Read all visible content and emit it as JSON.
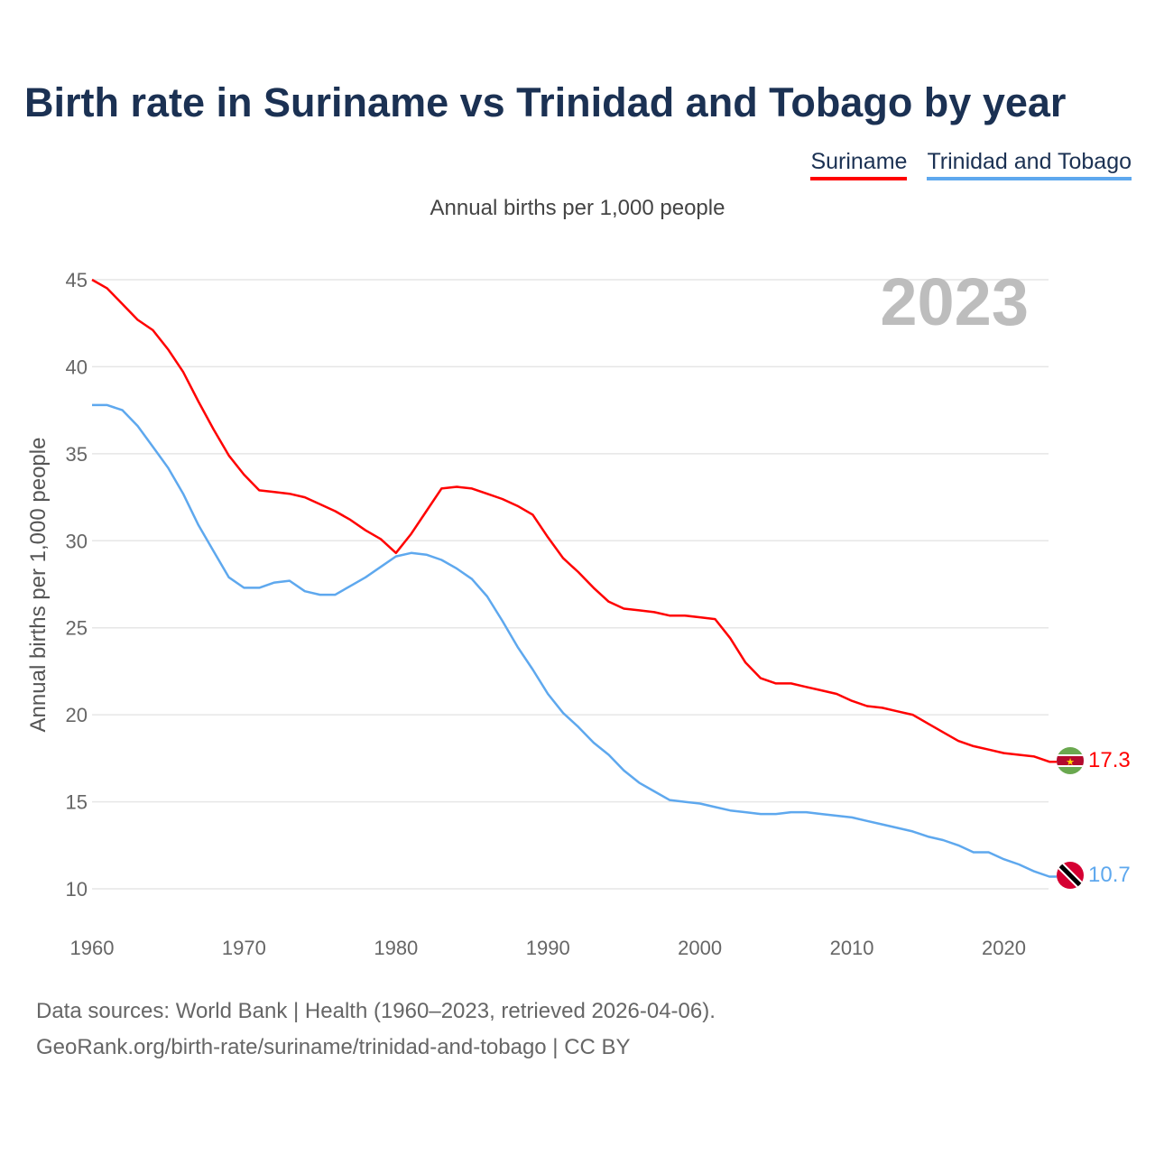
{
  "title": "Birth rate in Suriname vs Trinidad and Tobago by year",
  "subtitle": "Annual births per 1,000 people",
  "footer": {
    "line1": "Data sources: World Bank | Health (1960–2023, retrieved 2026-04-06).",
    "line2": "GeoRank.org/birth-rate/suriname/trinidad-and-tobago | CC BY"
  },
  "chart_data": {
    "type": "line",
    "title": "Birth rate in Suriname vs Trinidad and Tobago by year",
    "subtitle": "Annual births per 1,000 people",
    "xlabel": "",
    "ylabel": "Annual births per 1,000 people",
    "year_label": "2023",
    "xlim": [
      1960,
      2023
    ],
    "ylim": [
      10,
      45
    ],
    "x_ticks": [
      1960,
      1970,
      1980,
      1990,
      2000,
      2010,
      2020
    ],
    "y_ticks": [
      10,
      15,
      20,
      25,
      30,
      35,
      40,
      45
    ],
    "grid": true,
    "legend_position": "top-right",
    "x": [
      1960,
      1961,
      1962,
      1963,
      1964,
      1965,
      1966,
      1967,
      1968,
      1969,
      1970,
      1971,
      1972,
      1973,
      1974,
      1975,
      1976,
      1977,
      1978,
      1979,
      1980,
      1981,
      1982,
      1983,
      1984,
      1985,
      1986,
      1987,
      1988,
      1989,
      1990,
      1991,
      1992,
      1993,
      1994,
      1995,
      1996,
      1997,
      1998,
      1999,
      2000,
      2001,
      2002,
      2003,
      2004,
      2005,
      2006,
      2007,
      2008,
      2009,
      2010,
      2011,
      2012,
      2013,
      2014,
      2015,
      2016,
      2017,
      2018,
      2019,
      2020,
      2021,
      2022,
      2023
    ],
    "series": [
      {
        "name": "Suriname",
        "color": "#ff0000",
        "end_label": "17.3",
        "flag": "suriname-flag",
        "values": [
          45.0,
          44.5,
          43.6,
          42.7,
          42.1,
          41.0,
          39.7,
          38.0,
          36.4,
          34.9,
          33.8,
          32.9,
          32.8,
          32.7,
          32.5,
          32.1,
          31.7,
          31.2,
          30.6,
          30.1,
          29.3,
          30.4,
          31.7,
          33.0,
          33.1,
          33.0,
          32.7,
          32.4,
          32.0,
          31.5,
          30.2,
          29.0,
          28.2,
          27.3,
          26.5,
          26.1,
          26.0,
          25.9,
          25.7,
          25.7,
          25.6,
          25.5,
          24.4,
          23.0,
          22.1,
          21.8,
          21.8,
          21.6,
          21.4,
          21.2,
          20.8,
          20.5,
          20.4,
          20.2,
          20.0,
          19.5,
          19.0,
          18.5,
          18.2,
          18.0,
          17.8,
          17.7,
          17.6,
          17.3
        ]
      },
      {
        "name": "Trinidad and Tobago",
        "color": "#5ea8ee",
        "end_label": "10.7",
        "flag": "trinidad-and-tobago-flag",
        "values": [
          37.8,
          37.8,
          37.5,
          36.6,
          35.4,
          34.2,
          32.7,
          30.9,
          29.4,
          27.9,
          27.3,
          27.3,
          27.6,
          27.7,
          27.1,
          26.9,
          26.9,
          27.4,
          27.9,
          28.5,
          29.1,
          29.3,
          29.2,
          28.9,
          28.4,
          27.8,
          26.8,
          25.4,
          23.9,
          22.6,
          21.2,
          20.1,
          19.3,
          18.4,
          17.7,
          16.8,
          16.1,
          15.6,
          15.1,
          15.0,
          14.9,
          14.7,
          14.5,
          14.4,
          14.3,
          14.3,
          14.4,
          14.4,
          14.3,
          14.2,
          14.1,
          13.9,
          13.7,
          13.5,
          13.3,
          13.0,
          12.8,
          12.5,
          12.1,
          12.1,
          11.7,
          11.4,
          11.0,
          10.7
        ]
      }
    ]
  }
}
